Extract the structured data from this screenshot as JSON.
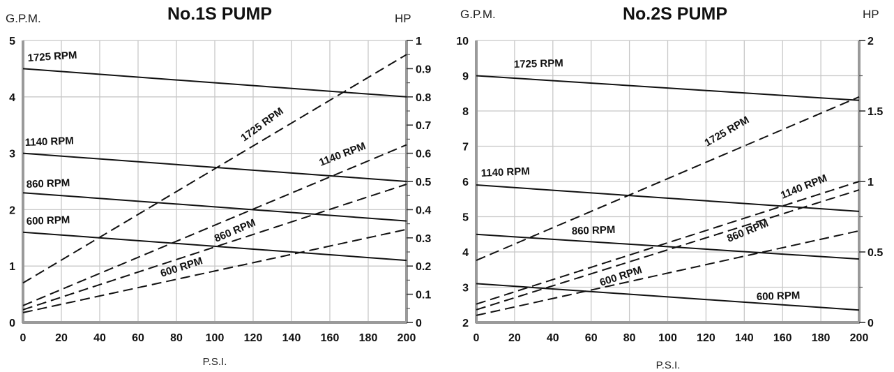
{
  "chart_data": [
    {
      "type": "line",
      "title": "No.1S PUMP",
      "ylabel_left": "G.P.M.",
      "ylabel_right": "HP",
      "xlabel": "P.S.I.",
      "xlim": [
        0,
        200
      ],
      "ylim_left": [
        0,
        5
      ],
      "ylim_right": [
        0,
        1
      ],
      "x_ticks": [
        "0",
        "20",
        "40",
        "60",
        "80",
        "100",
        "120",
        "140",
        "160",
        "180",
        "200"
      ],
      "y_left_ticks": [
        "0",
        "1",
        "2",
        "3",
        "4",
        "5"
      ],
      "y_right_ticks": [
        "0",
        "0.1",
        "0.2",
        "0.3",
        "0.4",
        "0.5",
        "0.6",
        "0.7",
        "0.8",
        "0.9",
        "1"
      ],
      "grid": true,
      "series": [
        {
          "name": "1725 RPM",
          "axis": "left",
          "style": "solid",
          "x": [
            0,
            200
          ],
          "y": [
            4.5,
            4.0
          ]
        },
        {
          "name": "1140 RPM",
          "axis": "left",
          "style": "solid",
          "x": [
            0,
            200
          ],
          "y": [
            3.0,
            2.5
          ]
        },
        {
          "name": "860 RPM",
          "axis": "left",
          "style": "solid",
          "x": [
            0,
            200
          ],
          "y": [
            2.3,
            1.8
          ]
        },
        {
          "name": "600 RPM",
          "axis": "left",
          "style": "solid",
          "x": [
            0,
            200
          ],
          "y": [
            1.6,
            1.1
          ]
        },
        {
          "name": "1725 RPM",
          "axis": "right",
          "style": "dashed",
          "x": [
            0,
            200
          ],
          "y": [
            0.14,
            0.95
          ]
        },
        {
          "name": "1140 RPM",
          "axis": "right",
          "style": "dashed",
          "x": [
            0,
            200
          ],
          "y": [
            0.06,
            0.63
          ]
        },
        {
          "name": "860 RPM",
          "axis": "right",
          "style": "dashed",
          "x": [
            0,
            200
          ],
          "y": [
            0.045,
            0.49
          ]
        },
        {
          "name": "600 RPM",
          "axis": "right",
          "style": "dashed",
          "x": [
            0,
            200
          ],
          "y": [
            0.035,
            0.33
          ]
        }
      ]
    },
    {
      "type": "line",
      "title": "No.2S PUMP",
      "ylabel_left": "G.P.M.",
      "ylabel_right": "HP",
      "xlabel": "P.S.I.",
      "xlim": [
        0,
        200
      ],
      "ylim_left": [
        2,
        10
      ],
      "ylim_right": [
        0,
        2
      ],
      "x_ticks": [
        "0",
        "20",
        "40",
        "60",
        "80",
        "100",
        "120",
        "140",
        "160",
        "180",
        "200"
      ],
      "y_left_ticks": [
        "2",
        "3",
        "4",
        "5",
        "6",
        "7",
        "8",
        "9",
        "10"
      ],
      "y_right_ticks": [
        "0",
        "0.5",
        "1",
        "1.5",
        "2"
      ],
      "grid": true,
      "series": [
        {
          "name": "1725 RPM",
          "axis": "left",
          "style": "solid",
          "x": [
            0,
            200
          ],
          "y": [
            9.0,
            8.3
          ]
        },
        {
          "name": "1140 RPM",
          "axis": "left",
          "style": "solid",
          "x": [
            0,
            200
          ],
          "y": [
            5.9,
            5.15
          ]
        },
        {
          "name": "860 RPM",
          "axis": "left",
          "style": "solid",
          "x": [
            0,
            200
          ],
          "y": [
            4.5,
            3.8
          ]
        },
        {
          "name": "600 RPM",
          "axis": "left",
          "style": "solid",
          "x": [
            0,
            200
          ],
          "y": [
            3.1,
            2.35
          ]
        },
        {
          "name": "1725 RPM",
          "axis": "right",
          "style": "dashed",
          "x": [
            0,
            200
          ],
          "y": [
            0.44,
            1.6
          ]
        },
        {
          "name": "1140 RPM",
          "axis": "right",
          "style": "dashed",
          "x": [
            0,
            200
          ],
          "y": [
            0.13,
            1.0
          ]
        },
        {
          "name": "860 RPM",
          "axis": "right",
          "style": "dashed",
          "x": [
            0,
            200
          ],
          "y": [
            0.09,
            0.94
          ]
        },
        {
          "name": "600 RPM",
          "axis": "right",
          "style": "dashed",
          "x": [
            0,
            200
          ],
          "y": [
            0.05,
            0.65
          ]
        }
      ]
    }
  ]
}
